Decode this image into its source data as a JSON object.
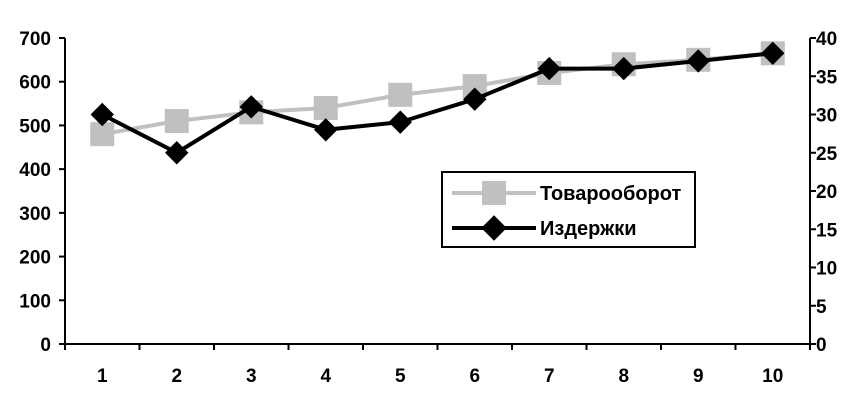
{
  "chart_data": {
    "type": "line",
    "title": "",
    "xlabel": "",
    "ylabel": "",
    "categories": [
      "1",
      "2",
      "3",
      "4",
      "5",
      "6",
      "7",
      "8",
      "9",
      "10"
    ],
    "y_left": {
      "range": [
        0,
        700
      ],
      "ticks": [
        "0",
        "100",
        "200",
        "300",
        "400",
        "500",
        "600",
        "700"
      ]
    },
    "y_right": {
      "range": [
        0,
        40
      ],
      "ticks": [
        "0",
        "5",
        "10",
        "15",
        "20",
        "25",
        "30",
        "35",
        "40"
      ]
    },
    "series": [
      {
        "name": "Товарооборот",
        "axis": "left",
        "marker": "square",
        "color": "#c0c0c0",
        "values": [
          480,
          510,
          530,
          540,
          570,
          590,
          620,
          640,
          650,
          665
        ]
      },
      {
        "name": "Издержки",
        "axis": "right",
        "marker": "diamond",
        "color": "#000000",
        "values": [
          30,
          25,
          31,
          28,
          29,
          32,
          36,
          36,
          37,
          38
        ]
      }
    ],
    "legend_position": "center-right",
    "grid": false
  }
}
